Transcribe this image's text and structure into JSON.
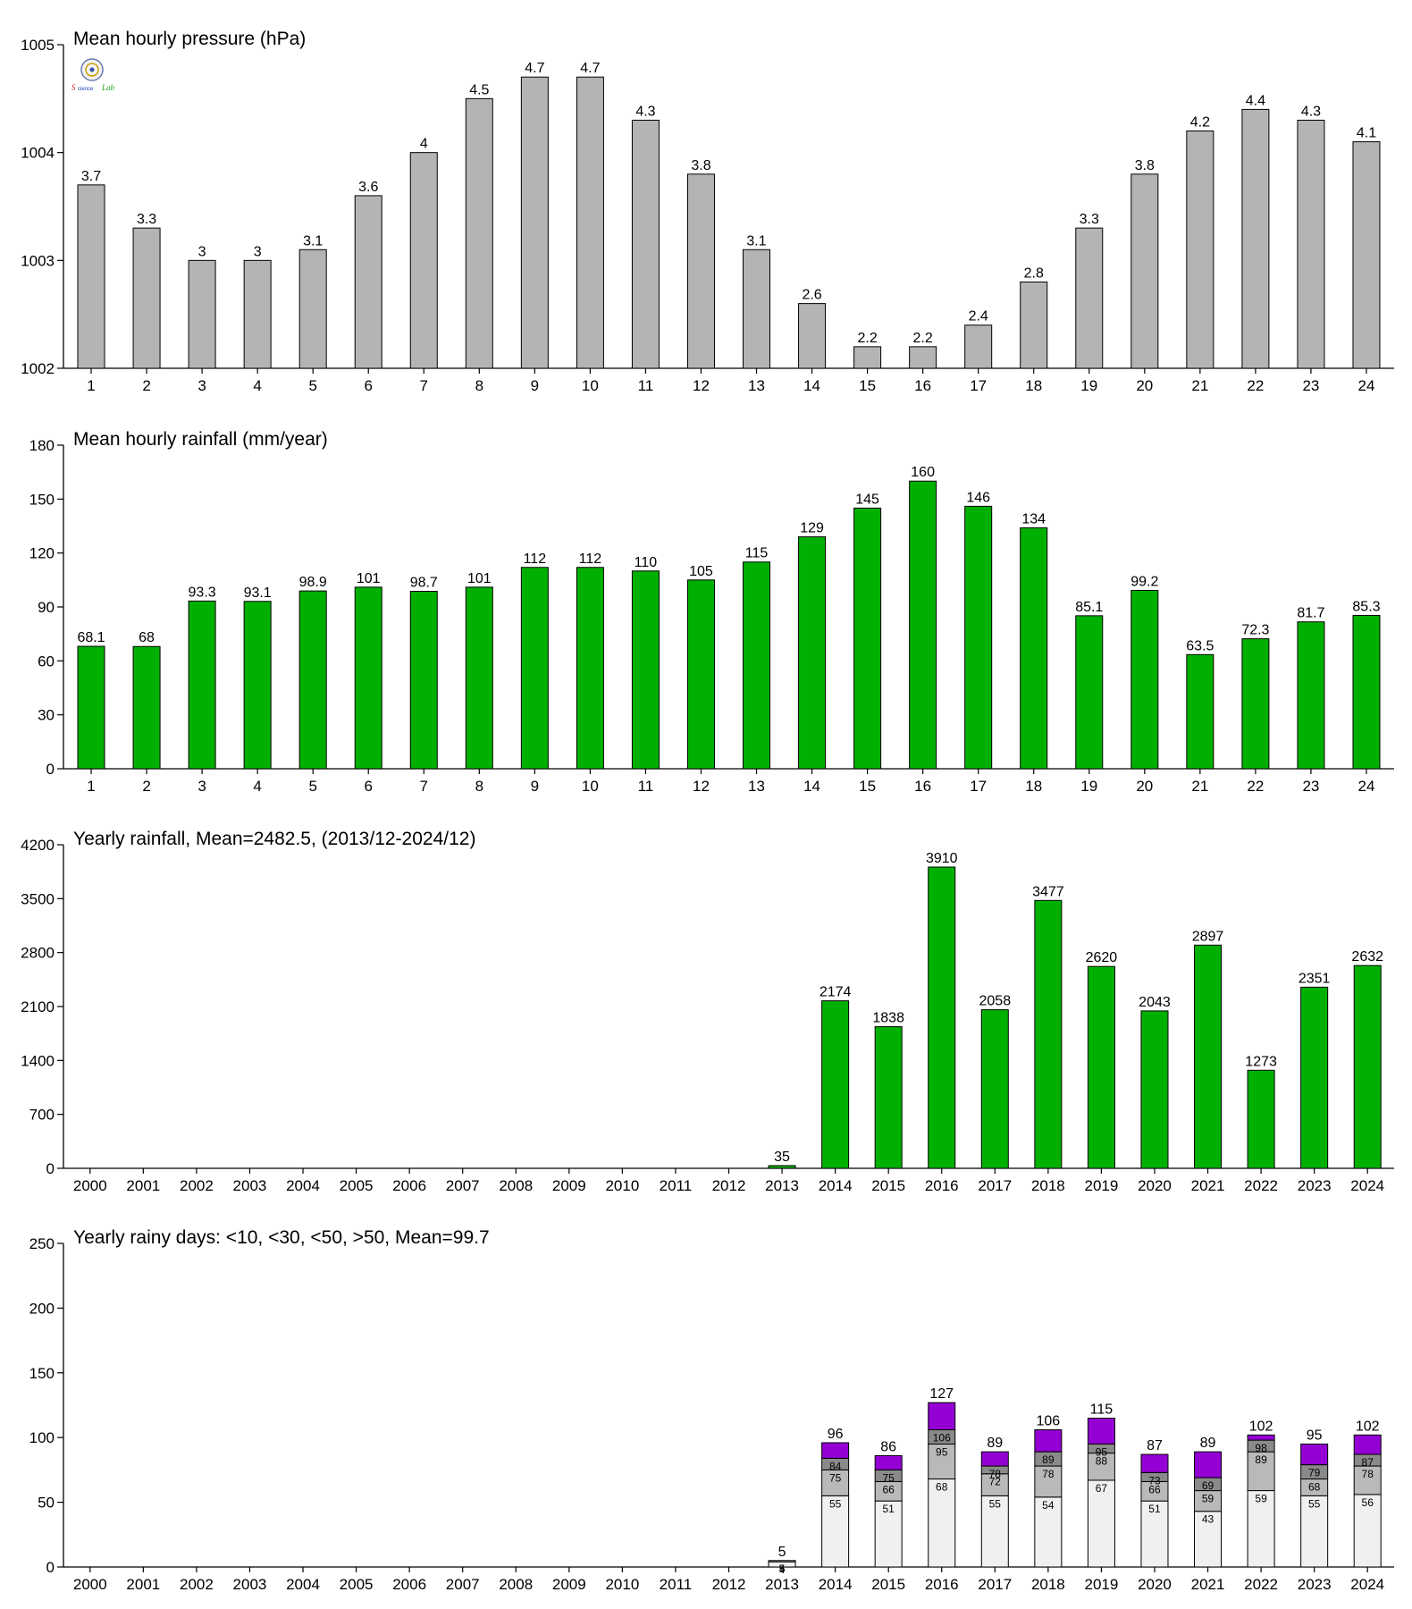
{
  "colors": {
    "pressure_bar": "#b4b4b4",
    "rain_bar": "#00b000",
    "days_lt10": "#f0f0f0",
    "days_lt30": "#b9b9b9",
    "days_lt50": "#8a8a8a",
    "days_gt50": "#9400d3"
  },
  "logo": {
    "text": "Lab"
  },
  "chart_data": [
    {
      "type": "bar",
      "title": "Mean hourly pressure (hPa)",
      "categories": [
        "1",
        "2",
        "3",
        "4",
        "5",
        "6",
        "7",
        "8",
        "9",
        "10",
        "11",
        "12",
        "13",
        "14",
        "15",
        "16",
        "17",
        "18",
        "19",
        "20",
        "21",
        "22",
        "23",
        "24"
      ],
      "values": [
        1003.7,
        1003.3,
        1003.0,
        1003.0,
        1003.1,
        1003.6,
        1004.0,
        1004.5,
        1004.7,
        1004.7,
        1004.3,
        1003.8,
        1003.1,
        1002.6,
        1002.2,
        1002.2,
        1002.4,
        1002.8,
        1003.3,
        1003.8,
        1004.2,
        1004.4,
        1004.3,
        1004.1
      ],
      "data_labels": [
        "3.7",
        "3.3",
        "3",
        "3",
        "3.1",
        "3.6",
        "4",
        "4.5",
        "4.7",
        "4.7",
        "4.3",
        "3.8",
        "3.1",
        "2.6",
        "2.2",
        "2.2",
        "2.4",
        "2.8",
        "3.3",
        "3.8",
        "4.2",
        "4.4",
        "4.3",
        "4.1"
      ],
      "ylim": [
        1002,
        1005
      ],
      "yticks": [
        1002,
        1003,
        1004,
        1005
      ],
      "color": "#b4b4b4"
    },
    {
      "type": "bar",
      "title": "Mean hourly rainfall (mm/year)",
      "categories": [
        "1",
        "2",
        "3",
        "4",
        "5",
        "6",
        "7",
        "8",
        "9",
        "10",
        "11",
        "12",
        "13",
        "14",
        "15",
        "16",
        "17",
        "18",
        "19",
        "20",
        "21",
        "22",
        "23",
        "24"
      ],
      "values": [
        68.1,
        68,
        93.3,
        93.1,
        98.9,
        101,
        98.7,
        101,
        112,
        112,
        110,
        105,
        115,
        129,
        145,
        160,
        146,
        134,
        85.1,
        99.2,
        63.5,
        72.3,
        81.7,
        85.3
      ],
      "data_labels": [
        "68.1",
        "68",
        "93.3",
        "93.1",
        "98.9",
        "101",
        "98.7",
        "101",
        "112",
        "112",
        "110",
        "105",
        "115",
        "129",
        "145",
        "160",
        "146",
        "134",
        "85.1",
        "99.2",
        "63.5",
        "72.3",
        "81.7",
        "85.3"
      ],
      "ylim": [
        0,
        180
      ],
      "yticks": [
        0,
        30,
        60,
        90,
        120,
        150,
        180
      ],
      "color": "#00b000"
    },
    {
      "type": "bar",
      "title": "Yearly rainfall, Mean=2482.5, (2013/12-2024/12)",
      "categories": [
        "2000",
        "2001",
        "2002",
        "2003",
        "2004",
        "2005",
        "2006",
        "2007",
        "2008",
        "2009",
        "2010",
        "2011",
        "2012",
        "2013",
        "2014",
        "2015",
        "2016",
        "2017",
        "2018",
        "2019",
        "2020",
        "2021",
        "2022",
        "2023",
        "2024"
      ],
      "values": [
        null,
        null,
        null,
        null,
        null,
        null,
        null,
        null,
        null,
        null,
        null,
        null,
        null,
        35,
        2174,
        1838,
        3910,
        2058,
        3477,
        2620,
        2043,
        2897,
        1273,
        2351,
        2632
      ],
      "data_labels": [
        "",
        "",
        "",
        "",
        "",
        "",
        "",
        "",
        "",
        "",
        "",
        "",
        "",
        "35",
        "2174",
        "1838",
        "3910",
        "2058",
        "3477",
        "2620",
        "2043",
        "2897",
        "1273",
        "2351",
        "2632"
      ],
      "ylim": [
        0,
        4200
      ],
      "yticks": [
        0,
        700,
        1400,
        2100,
        2800,
        3500,
        4200
      ],
      "color": "#00b000"
    },
    {
      "type": "bar",
      "stacked": true,
      "title": "Yearly rainy days: <10, <30, <50, >50, Mean=99.7",
      "categories": [
        "2000",
        "2001",
        "2002",
        "2003",
        "2004",
        "2005",
        "2006",
        "2007",
        "2008",
        "2009",
        "2010",
        "2011",
        "2012",
        "2013",
        "2014",
        "2015",
        "2016",
        "2017",
        "2018",
        "2019",
        "2020",
        "2021",
        "2022",
        "2023",
        "2024"
      ],
      "cumulative": {
        "lt10": [
          null,
          null,
          null,
          null,
          null,
          null,
          null,
          null,
          null,
          null,
          null,
          null,
          null,
          4,
          55,
          51,
          68,
          55,
          54,
          67,
          51,
          43,
          59,
          55,
          56
        ],
        "lt30": [
          null,
          null,
          null,
          null,
          null,
          null,
          null,
          null,
          null,
          null,
          null,
          null,
          null,
          5,
          75,
          66,
          95,
          72,
          78,
          88,
          66,
          59,
          89,
          68,
          78
        ],
        "lt50": [
          null,
          null,
          null,
          null,
          null,
          null,
          null,
          null,
          null,
          null,
          null,
          null,
          null,
          5,
          84,
          75,
          106,
          78,
          89,
          95,
          73,
          69,
          98,
          79,
          87
        ],
        "total": [
          null,
          null,
          null,
          null,
          null,
          null,
          null,
          null,
          null,
          null,
          null,
          null,
          null,
          5,
          96,
          86,
          127,
          89,
          106,
          115,
          87,
          89,
          102,
          95,
          102
        ]
      },
      "ylim": [
        0,
        250
      ],
      "yticks": [
        0,
        50,
        100,
        150,
        200,
        250
      ]
    }
  ]
}
